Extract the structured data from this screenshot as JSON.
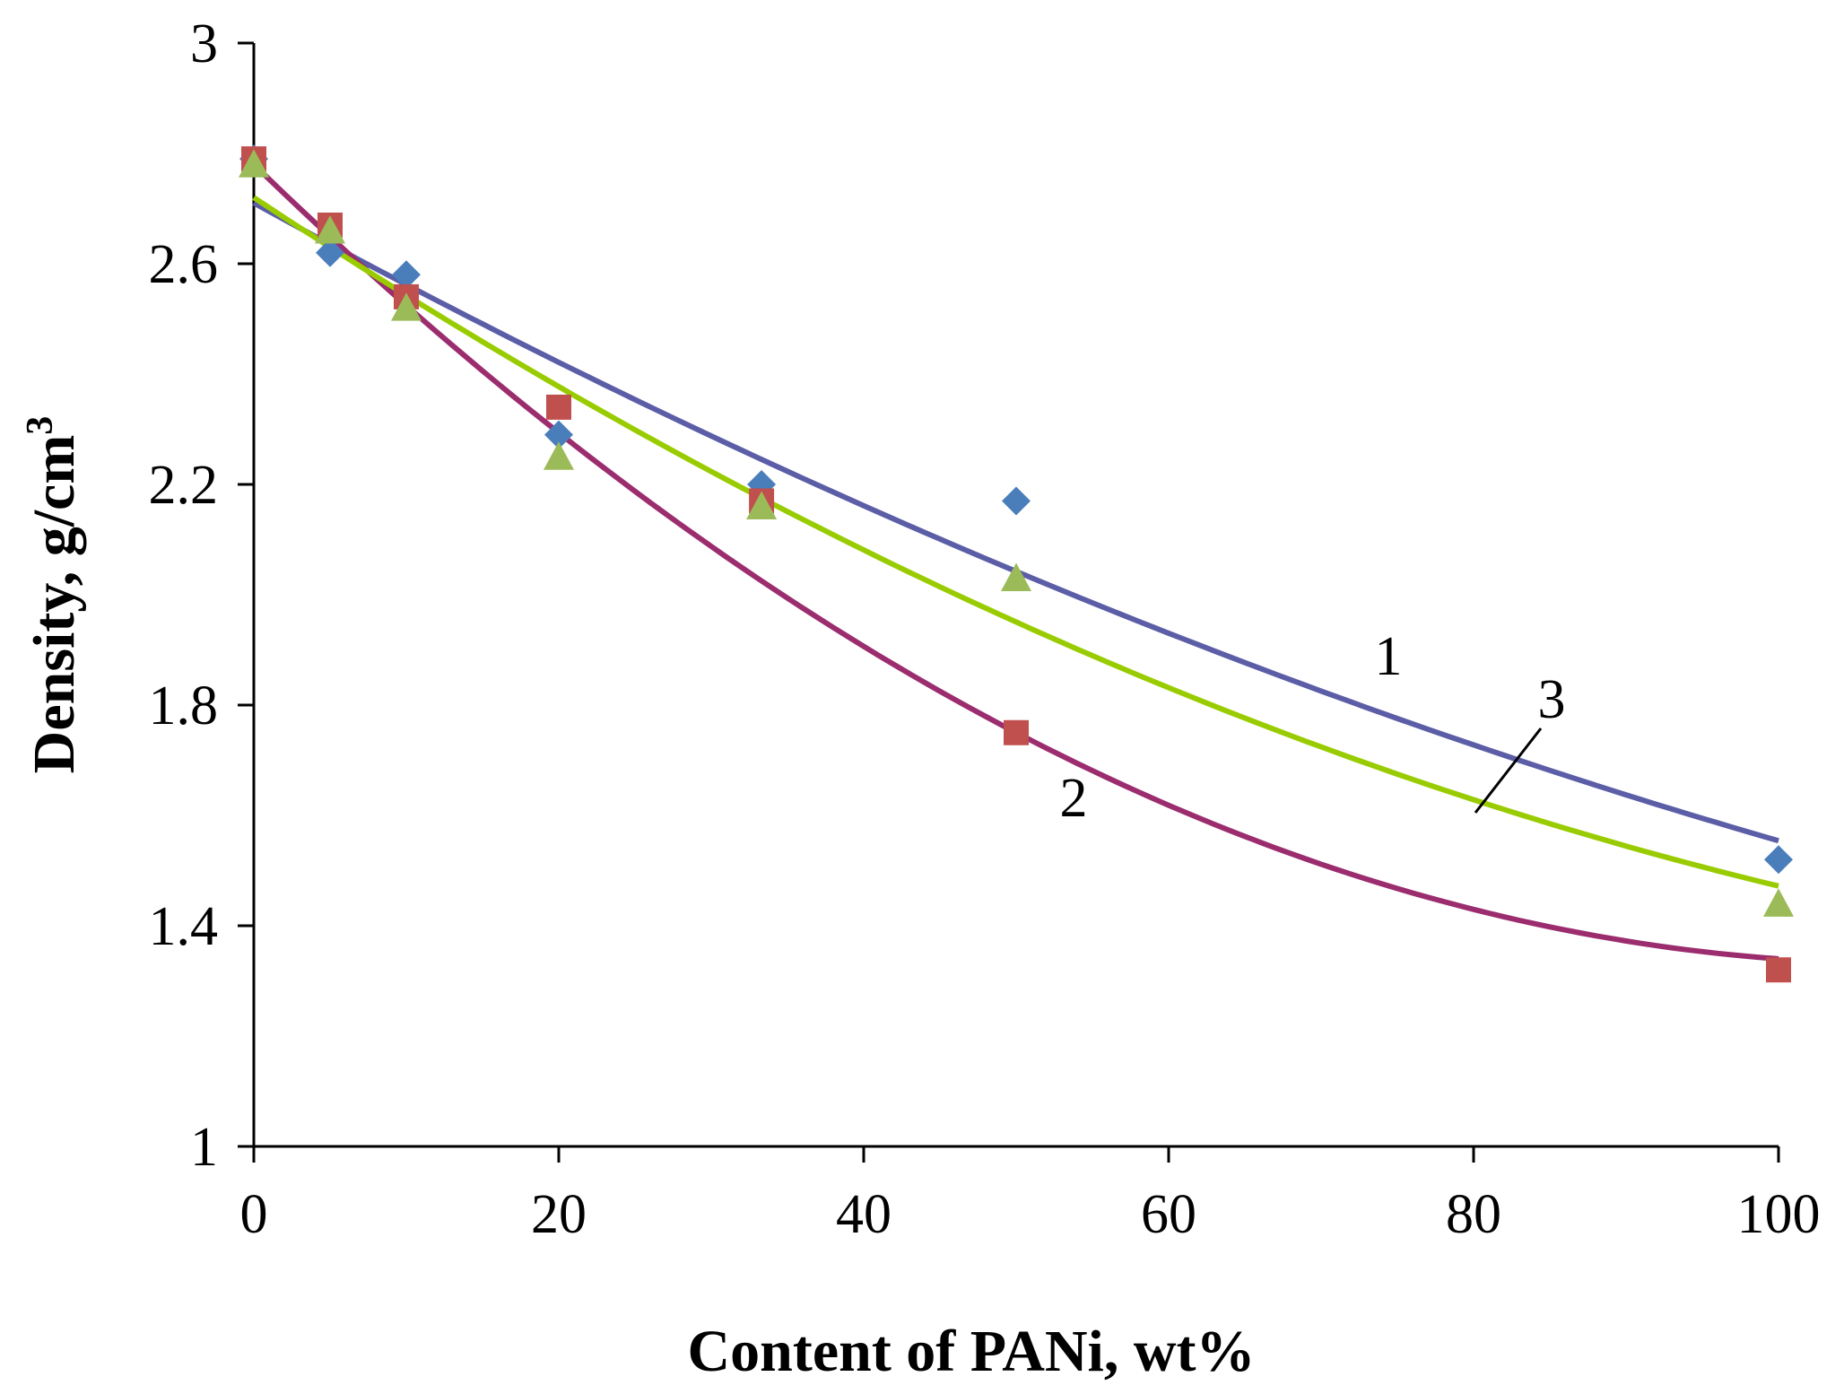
{
  "chart_data": {
    "type": "scatter",
    "title": "",
    "xlabel": "Content of PANi, wt%",
    "ylabel": "Density, g/cm",
    "ylabel_superscript": "3",
    "xlim": [
      0,
      100
    ],
    "ylim": [
      1,
      3
    ],
    "xticks": [
      "0",
      "20",
      "40",
      "60",
      "80",
      "100"
    ],
    "yticks": [
      "1",
      "1.4",
      "1.8",
      "2.2",
      "2.6",
      "3"
    ],
    "grid": false,
    "series": [
      {
        "name": "1",
        "label": "1",
        "marker": "diamond",
        "marker_color": "#4a7ebb",
        "line_color": "#5b5ea6",
        "x": [
          0,
          5,
          10,
          20,
          33.3,
          50,
          100
        ],
        "y": [
          2.79,
          2.62,
          2.58,
          2.29,
          2.2,
          2.17,
          1.52
        ],
        "trend": [
          2.71,
          -0.01515,
          3.59e-05
        ]
      },
      {
        "name": "2",
        "label": "2",
        "marker": "square",
        "marker_color": "#c0504d",
        "line_color": "#9b2d6f",
        "x": [
          0,
          5,
          10,
          20,
          33.3,
          50,
          100
        ],
        "y": [
          2.79,
          2.67,
          2.54,
          2.34,
          2.17,
          1.75,
          1.32
        ],
        "trend": [
          2.78,
          -0.0268,
          0.000124
        ]
      },
      {
        "name": "3",
        "label": "3",
        "marker": "triangle",
        "marker_color": "#9bbb59",
        "line_color": "#99cc00",
        "x": [
          0,
          5,
          10,
          20,
          33.3,
          50,
          100
        ],
        "y": [
          2.78,
          2.66,
          2.52,
          2.25,
          2.16,
          2.03,
          1.44
        ],
        "trend": [
          2.72,
          -0.0183,
          5.82e-05
        ]
      }
    ]
  }
}
